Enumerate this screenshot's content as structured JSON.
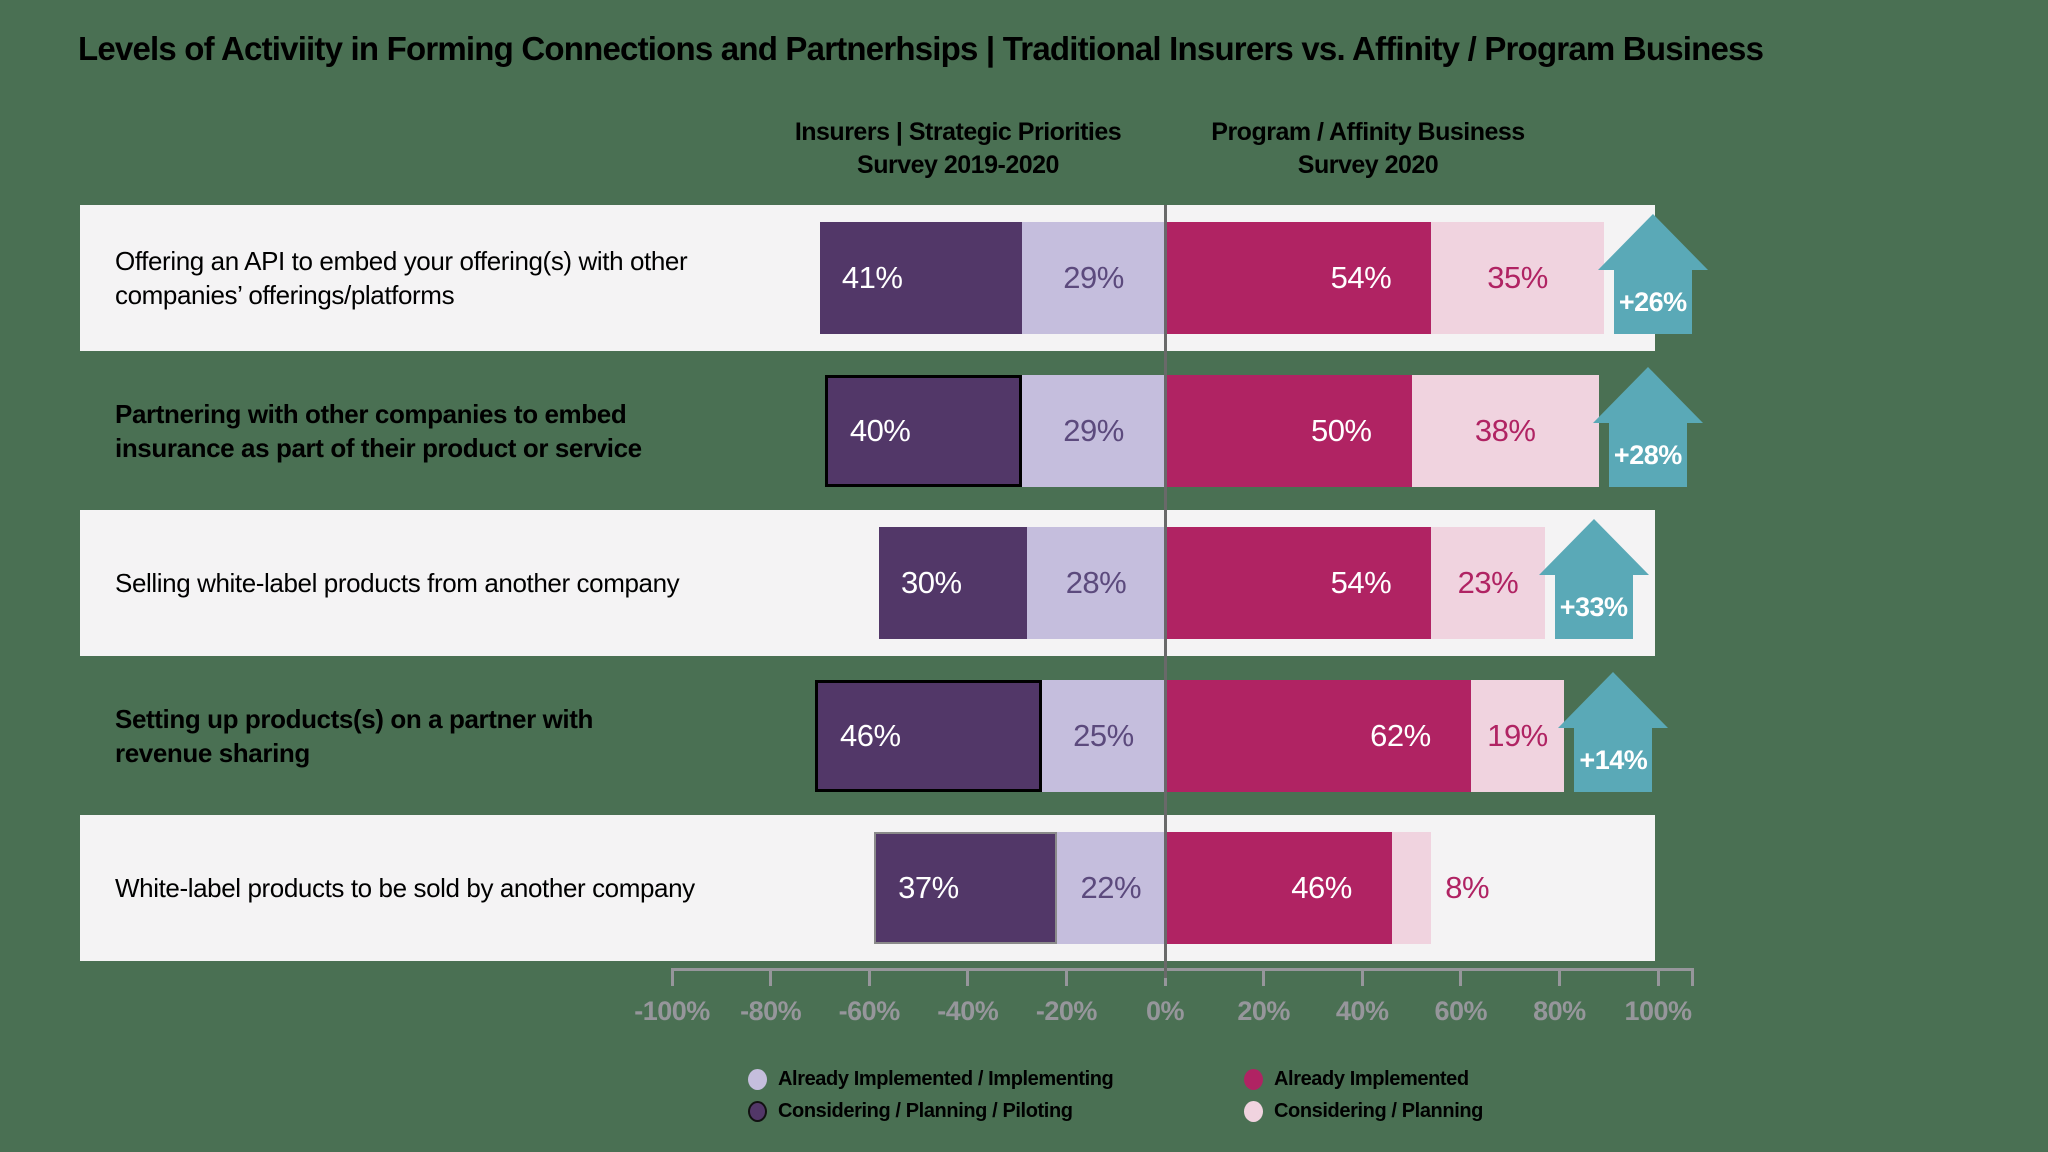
{
  "title": "Levels of Activiity in Forming Connections and Partnerhsips | Traditional Insurers vs. Affinity / Program Business",
  "chart_data": {
    "type": "bar",
    "variant": "diverging-stacked-horizontal",
    "left_header": {
      "line1": "Insurers | Strategic Priorities",
      "line2": "Survey 2019-2020"
    },
    "right_header": {
      "line1": "Program / Affinity Business",
      "line2": "Survey 2020"
    },
    "axis": {
      "min": -100,
      "max": 100,
      "step": 20,
      "tick_labels": [
        "-100%",
        "-80%",
        "-60%",
        "-40%",
        "-20%",
        "0%",
        "20%",
        "40%",
        "60%",
        "80%",
        "100%"
      ]
    },
    "groups": [
      {
        "name": "Insurers | Strategic Priorities Survey 2019-2020",
        "side": "left",
        "series": [
          "Considering / Planning / Piloting",
          "Already Implemented / Implementing"
        ]
      },
      {
        "name": "Program / Affinity Business Survey 2020",
        "side": "right",
        "series": [
          "Already Implemented",
          "Considering / Planning"
        ]
      }
    ],
    "rows": [
      {
        "label": "Offering an API to embed your offering(s) with other companies’ offerings/platforms",
        "bold": false,
        "band": true,
        "bar_outline": "none",
        "insurers_considering_pct": 41,
        "insurers_implemented_pct": 29,
        "program_implemented_pct": 54,
        "program_considering_pct": 35,
        "delta_label": "+26%"
      },
      {
        "label": "Partnering with other companies to embed insurance as part of their product or service",
        "bold": true,
        "band": false,
        "bar_outline": "black",
        "insurers_considering_pct": 40,
        "insurers_implemented_pct": 29,
        "program_implemented_pct": 50,
        "program_considering_pct": 38,
        "delta_label": "+28%"
      },
      {
        "label": "Selling white-label products from another company",
        "bold": false,
        "band": true,
        "bar_outline": "none",
        "insurers_considering_pct": 30,
        "insurers_implemented_pct": 28,
        "program_implemented_pct": 54,
        "program_considering_pct": 23,
        "delta_label": "+33%"
      },
      {
        "label": "Setting up products(s) on a partner with revenue sharing",
        "bold": true,
        "band": false,
        "bar_outline": "black",
        "insurers_considering_pct": 46,
        "insurers_implemented_pct": 25,
        "program_implemented_pct": 62,
        "program_considering_pct": 19,
        "delta_label": "+14%"
      },
      {
        "label": "White-label products to be sold by another company",
        "bold": false,
        "band": true,
        "bar_outline": "gray",
        "insurers_considering_pct": 37,
        "insurers_implemented_pct": 22,
        "program_implemented_pct": 46,
        "program_considering_pct": 8,
        "delta_label": null
      }
    ]
  },
  "legend": {
    "left": [
      {
        "label": "Already Implemented / Implementing",
        "color": "#c5bedd",
        "outline": "none"
      },
      {
        "label": "Considering / Planning / Piloting",
        "color": "#523768",
        "outline": "black"
      }
    ],
    "right": [
      {
        "label": "Already Implemented",
        "color": "#b02363",
        "outline": "none"
      },
      {
        "label": "Considering / Planning",
        "color": "#f0d3df",
        "outline": "none"
      }
    ]
  },
  "colors": {
    "background": "#4a7053",
    "band": "#f4f3f4",
    "insurers_considering": "#523768",
    "insurers_implemented": "#c5bedd",
    "program_implemented": "#b02363",
    "program_considering": "#f0d3df",
    "delta_arrow": "#5aa9b7",
    "axis": "#96969b",
    "center_line": "#696969",
    "text": "#000000",
    "light_value_text": "#5c4a7d",
    "pink_value_text": "#b02363"
  }
}
